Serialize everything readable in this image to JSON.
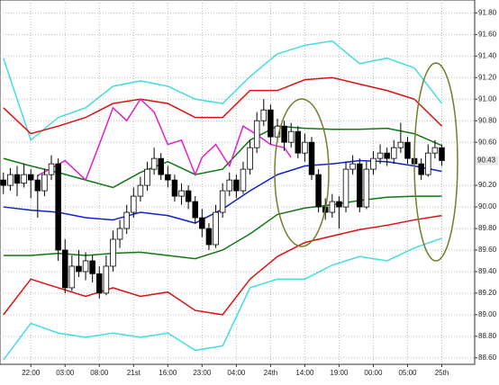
{
  "chart_data": {
    "type": "candlestick",
    "xlim": [
      -0.5,
      68.8
    ],
    "ylim": [
      88.54,
      91.92
    ],
    "grid": true,
    "xticks": [
      {
        "value": 4,
        "label": "22:00"
      },
      {
        "value": 9,
        "label": "03:00"
      },
      {
        "value": 14,
        "label": "08:00"
      },
      {
        "value": 19,
        "label": "21st"
      },
      {
        "value": 24,
        "label": "16:00"
      },
      {
        "value": 29,
        "label": "23:00"
      },
      {
        "value": 34,
        "label": "04:00"
      },
      {
        "value": 39,
        "label": "24th"
      },
      {
        "value": 44,
        "label": "14:00"
      },
      {
        "value": 49,
        "label": "19:00"
      },
      {
        "value": 54,
        "label": "00:00"
      },
      {
        "value": 59,
        "label": "05:00"
      },
      {
        "value": 64,
        "label": "25th"
      }
    ],
    "yticks": [
      {
        "value": 91.8,
        "label": "91.80"
      },
      {
        "value": 91.6,
        "label": "91.60"
      },
      {
        "value": 91.4,
        "label": "91.40"
      },
      {
        "value": 91.2,
        "label": "91.20"
      },
      {
        "value": 91.0,
        "label": "91.00"
      },
      {
        "value": 90.8,
        "label": "90.80"
      },
      {
        "value": 90.6,
        "label": "90.60"
      },
      {
        "value": 90.2,
        "label": "90.20"
      },
      {
        "value": 90.0,
        "label": "90.00"
      },
      {
        "value": 89.8,
        "label": "89.80"
      },
      {
        "value": 89.6,
        "label": "89.60"
      },
      {
        "value": 89.4,
        "label": "89.40"
      },
      {
        "value": 89.2,
        "label": "89.20"
      },
      {
        "value": 89.0,
        "label": "89.00"
      },
      {
        "value": 88.8,
        "label": "88.80"
      },
      {
        "value": 88.6,
        "label": "88.60"
      }
    ],
    "price_marker": {
      "value": 90.43,
      "label": "90.43",
      "color": "#cc33cc"
    },
    "ohlc": {
      "open": [
        90.25,
        90.2,
        90.3,
        90.22,
        90.3,
        90.25,
        90.15,
        90.3,
        90.4,
        89.6,
        89.25,
        89.45,
        89.4,
        89.5,
        89.38,
        89.2,
        89.45,
        89.7,
        89.8,
        89.95,
        90.1,
        90.2,
        90.35,
        90.45,
        90.3,
        90.25,
        90.1,
        90.15,
        90.05,
        89.9,
        89.8,
        89.65,
        89.95,
        90.15,
        90.25,
        90.15,
        90.35,
        90.55,
        90.8,
        90.9,
        90.65,
        90.75,
        90.6,
        90.7,
        90.5,
        90.6,
        90.3,
        90.0,
        89.95,
        90.05,
        90.0,
        90.35,
        90.4,
        90.0,
        90.35,
        90.45,
        90.5,
        90.45,
        90.55,
        90.6,
        90.45,
        90.4,
        90.3,
        90.5,
        90.55
      ],
      "high": [
        90.32,
        90.36,
        90.38,
        90.4,
        90.35,
        90.3,
        90.35,
        90.48,
        90.45,
        89.7,
        89.55,
        89.6,
        89.58,
        89.55,
        89.45,
        89.55,
        89.78,
        89.88,
        90.02,
        90.18,
        90.28,
        90.42,
        90.55,
        90.5,
        90.38,
        90.3,
        90.22,
        90.2,
        90.1,
        89.98,
        89.85,
        90.02,
        90.22,
        90.32,
        90.3,
        90.42,
        90.62,
        90.88,
        91.0,
        90.95,
        90.82,
        90.8,
        90.78,
        90.75,
        90.68,
        90.65,
        90.35,
        90.08,
        90.12,
        90.1,
        90.42,
        90.48,
        90.45,
        90.42,
        90.52,
        90.58,
        90.55,
        90.62,
        90.78,
        90.65,
        90.5,
        90.45,
        90.58,
        90.62,
        90.58
      ],
      "low": [
        90.12,
        90.15,
        90.1,
        90.18,
        90.08,
        89.9,
        90.1,
        90.25,
        89.5,
        89.2,
        89.22,
        89.35,
        89.32,
        89.3,
        89.15,
        89.18,
        89.4,
        89.62,
        89.75,
        89.9,
        90.05,
        90.15,
        90.3,
        90.25,
        90.18,
        90.05,
        90.02,
        89.98,
        89.85,
        89.72,
        89.6,
        89.62,
        89.9,
        90.1,
        90.08,
        90.12,
        90.3,
        90.5,
        90.75,
        90.58,
        90.6,
        90.52,
        90.55,
        90.45,
        90.42,
        90.25,
        89.95,
        89.88,
        89.9,
        89.8,
        89.95,
        90.3,
        89.95,
        89.98,
        90.3,
        90.4,
        90.38,
        90.4,
        90.5,
        90.4,
        90.35,
        90.25,
        90.28,
        90.45,
        90.38
      ],
      "close": [
        90.2,
        90.3,
        90.22,
        90.3,
        90.25,
        90.15,
        90.3,
        90.4,
        89.6,
        89.25,
        89.45,
        89.4,
        89.5,
        89.38,
        89.2,
        89.45,
        89.7,
        89.8,
        89.95,
        90.1,
        90.2,
        90.35,
        90.45,
        90.3,
        90.25,
        90.1,
        90.15,
        90.05,
        89.9,
        89.8,
        89.65,
        89.95,
        90.15,
        90.25,
        90.15,
        90.35,
        90.55,
        90.8,
        90.9,
        90.65,
        90.75,
        90.6,
        90.7,
        90.5,
        90.6,
        90.3,
        90.0,
        89.95,
        90.05,
        90.0,
        90.35,
        90.4,
        90.0,
        90.35,
        90.45,
        90.5,
        90.45,
        90.55,
        90.6,
        90.45,
        90.4,
        90.3,
        90.5,
        90.55,
        90.43
      ]
    },
    "bands": {
      "x": [
        0,
        4,
        8,
        12,
        16,
        20,
        24,
        28,
        32,
        36,
        40,
        44,
        48,
        52,
        56,
        60,
        64
      ],
      "series": [
        {
          "color": "#44dddd",
          "values": [
            91.38,
            90.62,
            90.83,
            90.92,
            91.12,
            91.17,
            91.12,
            91.0,
            90.96,
            91.21,
            91.42,
            91.5,
            91.54,
            91.33,
            91.38,
            91.29,
            90.96
          ]
        },
        {
          "color": "#dd1111",
          "values": [
            90.92,
            90.68,
            90.75,
            90.83,
            90.96,
            91.0,
            90.96,
            90.83,
            90.83,
            91.08,
            91.08,
            91.18,
            91.2,
            91.14,
            91.08,
            91.0,
            90.75
          ]
        },
        {
          "color": "#117711",
          "values": [
            90.45,
            90.38,
            90.32,
            90.25,
            90.18,
            90.32,
            90.42,
            90.3,
            90.35,
            90.62,
            90.75,
            90.73,
            90.72,
            90.72,
            90.73,
            90.68,
            90.57
          ]
        },
        {
          "color": "#1122cc",
          "values": [
            90.0,
            89.97,
            89.95,
            89.9,
            89.88,
            89.95,
            89.92,
            89.85,
            89.98,
            90.15,
            90.3,
            90.38,
            90.4,
            90.43,
            90.42,
            90.38,
            90.33
          ]
        },
        {
          "color": "#117711",
          "values": [
            89.55,
            89.55,
            89.57,
            89.55,
            89.57,
            89.58,
            89.55,
            89.52,
            89.6,
            89.75,
            89.93,
            89.99,
            90.02,
            90.06,
            90.09,
            90.1,
            90.1
          ]
        },
        {
          "color": "#dd1111",
          "values": [
            89.0,
            89.33,
            89.25,
            89.17,
            89.25,
            89.17,
            89.21,
            89.04,
            89.0,
            89.33,
            89.54,
            89.67,
            89.73,
            89.79,
            89.83,
            89.88,
            89.92
          ]
        },
        {
          "color": "#44dddd",
          "values": [
            88.58,
            88.92,
            88.83,
            88.79,
            88.83,
            88.79,
            88.83,
            88.67,
            88.71,
            89.25,
            89.33,
            89.33,
            89.46,
            89.54,
            89.5,
            89.62,
            89.71
          ]
        }
      ]
    },
    "lagging": {
      "color": "#dd22cc",
      "x": [
        5,
        9,
        12,
        14,
        16,
        18,
        20,
        22,
        24,
        26,
        28,
        29,
        31,
        33,
        35,
        37,
        39,
        41,
        42
      ],
      "values": [
        90.29,
        90.43,
        90.25,
        90.58,
        90.92,
        90.8,
        91.0,
        90.88,
        90.58,
        90.62,
        90.3,
        90.46,
        90.58,
        90.38,
        90.75,
        90.67,
        90.58,
        90.55,
        90.46
      ]
    }
  }
}
